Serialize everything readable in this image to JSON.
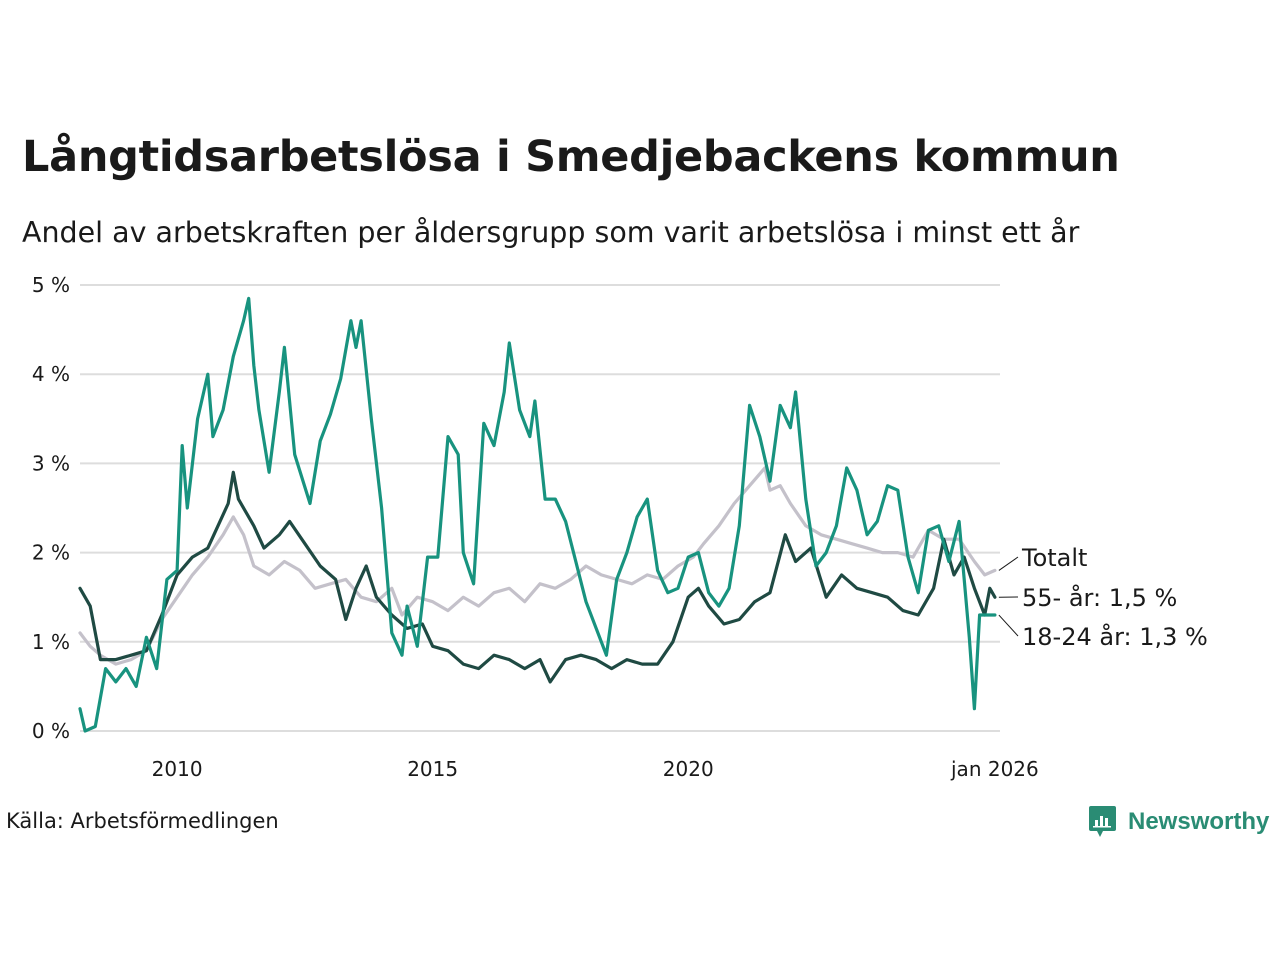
{
  "title": "Långtidsarbetslösa i Smedjebackens kommun",
  "subtitle": "Andel av arbetskraften per åldersgrupp som varit arbetslösa i minst ett år",
  "source": "Källa: Arbetsförmedlingen",
  "logo_text": "Newsworthy",
  "colors": {
    "totalt": "#c4c1ca",
    "age55": "#1f4a43",
    "age18": "#18937f",
    "grid": "#dddddd",
    "brand": "#2a8c74"
  },
  "chart_data": {
    "type": "line",
    "x_unit": "year (decimal)",
    "xlim": [
      2008.1,
      2026.1
    ],
    "ylim": [
      0,
      5
    ],
    "ylabel": "",
    "xlabel": "",
    "y_ticks": [
      0,
      1,
      2,
      3,
      4,
      5
    ],
    "y_tick_labels": [
      "0 %",
      "1 %",
      "2 %",
      "3 %",
      "4 %",
      "5 %"
    ],
    "x_ticks": [
      2010,
      2015,
      2020,
      2026.0
    ],
    "x_tick_labels": [
      "2010",
      "2015",
      "2020",
      "jan 2026"
    ],
    "grid": true,
    "series": [
      {
        "key": "totalt",
        "name": "Totalt",
        "label": "Totalt",
        "points": [
          [
            2008.1,
            1.1
          ],
          [
            2008.3,
            0.95
          ],
          [
            2008.5,
            0.85
          ],
          [
            2008.8,
            0.75
          ],
          [
            2009.1,
            0.8
          ],
          [
            2009.4,
            0.9
          ],
          [
            2009.7,
            1.25
          ],
          [
            2010.0,
            1.5
          ],
          [
            2010.3,
            1.75
          ],
          [
            2010.6,
            1.95
          ],
          [
            2010.9,
            2.2
          ],
          [
            2011.1,
            2.4
          ],
          [
            2011.3,
            2.2
          ],
          [
            2011.5,
            1.85
          ],
          [
            2011.8,
            1.75
          ],
          [
            2012.1,
            1.9
          ],
          [
            2012.4,
            1.8
          ],
          [
            2012.7,
            1.6
          ],
          [
            2013.0,
            1.65
          ],
          [
            2013.3,
            1.7
          ],
          [
            2013.6,
            1.5
          ],
          [
            2013.9,
            1.45
          ],
          [
            2014.2,
            1.6
          ],
          [
            2014.4,
            1.3
          ],
          [
            2014.7,
            1.5
          ],
          [
            2015.0,
            1.45
          ],
          [
            2015.3,
            1.35
          ],
          [
            2015.6,
            1.5
          ],
          [
            2015.9,
            1.4
          ],
          [
            2016.2,
            1.55
          ],
          [
            2016.5,
            1.6
          ],
          [
            2016.8,
            1.45
          ],
          [
            2017.1,
            1.65
          ],
          [
            2017.4,
            1.6
          ],
          [
            2017.7,
            1.7
          ],
          [
            2018.0,
            1.85
          ],
          [
            2018.3,
            1.75
          ],
          [
            2018.6,
            1.7
          ],
          [
            2018.9,
            1.65
          ],
          [
            2019.2,
            1.75
          ],
          [
            2019.5,
            1.7
          ],
          [
            2019.8,
            1.85
          ],
          [
            2020.1,
            1.95
          ],
          [
            2020.3,
            2.1
          ],
          [
            2020.6,
            2.3
          ],
          [
            2020.9,
            2.55
          ],
          [
            2021.2,
            2.75
          ],
          [
            2021.5,
            2.95
          ],
          [
            2021.6,
            2.7
          ],
          [
            2021.8,
            2.75
          ],
          [
            2022.0,
            2.55
          ],
          [
            2022.3,
            2.3
          ],
          [
            2022.6,
            2.2
          ],
          [
            2022.9,
            2.15
          ],
          [
            2023.2,
            2.1
          ],
          [
            2023.5,
            2.05
          ],
          [
            2023.8,
            2.0
          ],
          [
            2024.1,
            2.0
          ],
          [
            2024.4,
            1.95
          ],
          [
            2024.7,
            2.25
          ],
          [
            2025.0,
            2.15
          ],
          [
            2025.3,
            2.15
          ],
          [
            2025.6,
            1.9
          ],
          [
            2025.8,
            1.75
          ],
          [
            2026.0,
            1.8
          ]
        ]
      },
      {
        "key": "age55",
        "name": "55- år",
        "label": "55- år: 1,5 %",
        "points": [
          [
            2008.1,
            1.6
          ],
          [
            2008.3,
            1.4
          ],
          [
            2008.5,
            0.8
          ],
          [
            2008.8,
            0.8
          ],
          [
            2009.1,
            0.85
          ],
          [
            2009.4,
            0.9
          ],
          [
            2009.7,
            1.3
          ],
          [
            2010.0,
            1.75
          ],
          [
            2010.3,
            1.95
          ],
          [
            2010.6,
            2.05
          ],
          [
            2010.8,
            2.3
          ],
          [
            2011.0,
            2.55
          ],
          [
            2011.1,
            2.9
          ],
          [
            2011.2,
            2.6
          ],
          [
            2011.5,
            2.3
          ],
          [
            2011.7,
            2.05
          ],
          [
            2012.0,
            2.2
          ],
          [
            2012.2,
            2.35
          ],
          [
            2012.5,
            2.1
          ],
          [
            2012.8,
            1.85
          ],
          [
            2013.1,
            1.7
          ],
          [
            2013.3,
            1.25
          ],
          [
            2013.5,
            1.6
          ],
          [
            2013.7,
            1.85
          ],
          [
            2013.9,
            1.5
          ],
          [
            2014.2,
            1.3
          ],
          [
            2014.5,
            1.15
          ],
          [
            2014.8,
            1.2
          ],
          [
            2015.0,
            0.95
          ],
          [
            2015.3,
            0.9
          ],
          [
            2015.6,
            0.75
          ],
          [
            2015.9,
            0.7
          ],
          [
            2016.2,
            0.85
          ],
          [
            2016.5,
            0.8
          ],
          [
            2016.8,
            0.7
          ],
          [
            2017.1,
            0.8
          ],
          [
            2017.3,
            0.55
          ],
          [
            2017.6,
            0.8
          ],
          [
            2017.9,
            0.85
          ],
          [
            2018.2,
            0.8
          ],
          [
            2018.5,
            0.7
          ],
          [
            2018.8,
            0.8
          ],
          [
            2019.1,
            0.75
          ],
          [
            2019.4,
            0.75
          ],
          [
            2019.7,
            1.0
          ],
          [
            2020.0,
            1.5
          ],
          [
            2020.2,
            1.6
          ],
          [
            2020.4,
            1.4
          ],
          [
            2020.7,
            1.2
          ],
          [
            2021.0,
            1.25
          ],
          [
            2021.3,
            1.45
          ],
          [
            2021.6,
            1.55
          ],
          [
            2021.9,
            2.2
          ],
          [
            2022.1,
            1.9
          ],
          [
            2022.4,
            2.05
          ],
          [
            2022.7,
            1.5
          ],
          [
            2023.0,
            1.75
          ],
          [
            2023.3,
            1.6
          ],
          [
            2023.6,
            1.55
          ],
          [
            2023.9,
            1.5
          ],
          [
            2024.2,
            1.35
          ],
          [
            2024.5,
            1.3
          ],
          [
            2024.8,
            1.6
          ],
          [
            2025.0,
            2.15
          ],
          [
            2025.2,
            1.75
          ],
          [
            2025.4,
            1.95
          ],
          [
            2025.6,
            1.6
          ],
          [
            2025.8,
            1.3
          ],
          [
            2025.9,
            1.6
          ],
          [
            2026.0,
            1.5
          ]
        ]
      },
      {
        "key": "age18",
        "name": "18-24 år",
        "label": "18-24 år: 1,3 %",
        "points": [
          [
            2008.1,
            0.25
          ],
          [
            2008.2,
            0.0
          ],
          [
            2008.4,
            0.05
          ],
          [
            2008.6,
            0.7
          ],
          [
            2008.8,
            0.55
          ],
          [
            2009.0,
            0.7
          ],
          [
            2009.2,
            0.5
          ],
          [
            2009.4,
            1.05
          ],
          [
            2009.6,
            0.7
          ],
          [
            2009.8,
            1.7
          ],
          [
            2010.0,
            1.8
          ],
          [
            2010.1,
            3.2
          ],
          [
            2010.2,
            2.5
          ],
          [
            2010.4,
            3.5
          ],
          [
            2010.6,
            4.0
          ],
          [
            2010.7,
            3.3
          ],
          [
            2010.9,
            3.6
          ],
          [
            2011.1,
            4.2
          ],
          [
            2011.3,
            4.6
          ],
          [
            2011.4,
            4.85
          ],
          [
            2011.5,
            4.1
          ],
          [
            2011.6,
            3.6
          ],
          [
            2011.8,
            2.9
          ],
          [
            2012.0,
            3.8
          ],
          [
            2012.1,
            4.3
          ],
          [
            2012.3,
            3.1
          ],
          [
            2012.6,
            2.55
          ],
          [
            2012.8,
            3.25
          ],
          [
            2013.0,
            3.55
          ],
          [
            2013.2,
            3.95
          ],
          [
            2013.4,
            4.6
          ],
          [
            2013.5,
            4.3
          ],
          [
            2013.6,
            4.6
          ],
          [
            2013.8,
            3.5
          ],
          [
            2014.0,
            2.5
          ],
          [
            2014.2,
            1.1
          ],
          [
            2014.4,
            0.85
          ],
          [
            2014.5,
            1.4
          ],
          [
            2014.7,
            0.95
          ],
          [
            2014.9,
            1.95
          ],
          [
            2015.1,
            1.95
          ],
          [
            2015.3,
            3.3
          ],
          [
            2015.5,
            3.1
          ],
          [
            2015.6,
            2.0
          ],
          [
            2015.8,
            1.65
          ],
          [
            2016.0,
            3.45
          ],
          [
            2016.2,
            3.2
          ],
          [
            2016.4,
            3.8
          ],
          [
            2016.5,
            4.35
          ],
          [
            2016.7,
            3.6
          ],
          [
            2016.9,
            3.3
          ],
          [
            2017.0,
            3.7
          ],
          [
            2017.2,
            2.6
          ],
          [
            2017.4,
            2.6
          ],
          [
            2017.6,
            2.35
          ],
          [
            2017.8,
            1.9
          ],
          [
            2018.0,
            1.45
          ],
          [
            2018.2,
            1.15
          ],
          [
            2018.4,
            0.85
          ],
          [
            2018.6,
            1.7
          ],
          [
            2018.8,
            2.0
          ],
          [
            2019.0,
            2.4
          ],
          [
            2019.2,
            2.6
          ],
          [
            2019.4,
            1.8
          ],
          [
            2019.6,
            1.55
          ],
          [
            2019.8,
            1.6
          ],
          [
            2020.0,
            1.95
          ],
          [
            2020.2,
            2.0
          ],
          [
            2020.4,
            1.55
          ],
          [
            2020.6,
            1.4
          ],
          [
            2020.8,
            1.6
          ],
          [
            2021.0,
            2.3
          ],
          [
            2021.2,
            3.65
          ],
          [
            2021.4,
            3.3
          ],
          [
            2021.6,
            2.8
          ],
          [
            2021.8,
            3.65
          ],
          [
            2022.0,
            3.4
          ],
          [
            2022.1,
            3.8
          ],
          [
            2022.3,
            2.6
          ],
          [
            2022.5,
            1.85
          ],
          [
            2022.7,
            2.0
          ],
          [
            2022.9,
            2.3
          ],
          [
            2023.1,
            2.95
          ],
          [
            2023.3,
            2.7
          ],
          [
            2023.5,
            2.2
          ],
          [
            2023.7,
            2.35
          ],
          [
            2023.9,
            2.75
          ],
          [
            2024.1,
            2.7
          ],
          [
            2024.3,
            1.95
          ],
          [
            2024.5,
            1.55
          ],
          [
            2024.7,
            2.25
          ],
          [
            2024.9,
            2.3
          ],
          [
            2025.1,
            1.9
          ],
          [
            2025.3,
            2.35
          ],
          [
            2025.5,
            1.05
          ],
          [
            2025.6,
            0.25
          ],
          [
            2025.7,
            1.3
          ],
          [
            2026.0,
            1.3
          ]
        ]
      }
    ]
  }
}
